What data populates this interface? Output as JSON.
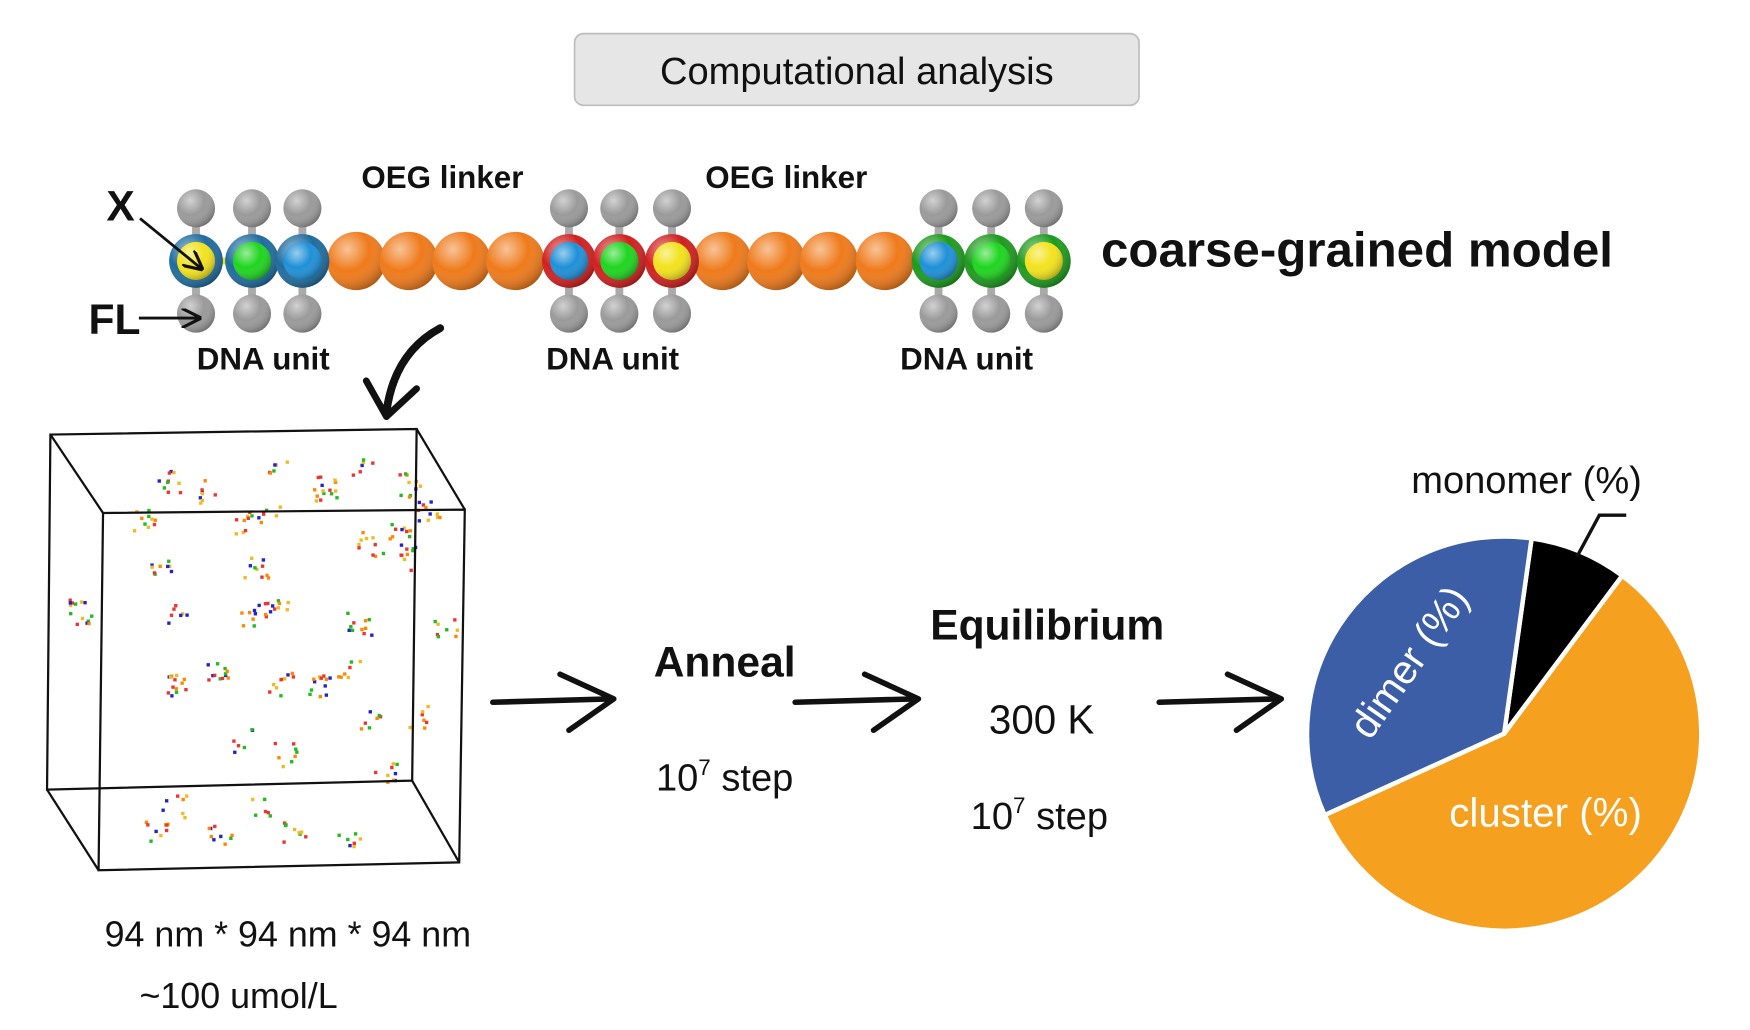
{
  "header": {
    "title": "Computational analysis"
  },
  "model": {
    "title": "coarse-grained model",
    "x_label": "X",
    "fl_label": "FL",
    "linker_labels": [
      "OEG linker",
      "OEG linker"
    ],
    "unit_labels": [
      "DNA unit",
      "DNA unit",
      "DNA unit"
    ],
    "colors": {
      "linker": "#ef7a1a",
      "flank": "#9a9a9a",
      "unit_rings": [
        "#1f6c9e",
        "#d11f1f",
        "#1e9a1e"
      ],
      "unit_cores": [
        [
          "#f2e21c",
          "#1fd51f",
          "#1e90d8"
        ],
        [
          "#1e90d8",
          "#1fd51f",
          "#f2e21c"
        ],
        [
          "#1e90d8",
          "#1fd51f",
          "#f2e21c"
        ]
      ]
    }
  },
  "box": {
    "dimensions": "94 nm * 94 nm * 94 nm",
    "concentration": "~100 umol/L"
  },
  "steps": {
    "anneal": {
      "title": "Anneal",
      "base": "10",
      "exp": "7",
      "unit": " step"
    },
    "equilibrium": {
      "title": "Equilibrium",
      "temperature": "300 K",
      "base": "10",
      "exp": "7",
      "unit": " step"
    }
  },
  "pie": {
    "slices": [
      {
        "label": "monomer (%)",
        "value": 8,
        "color": "#000000"
      },
      {
        "label": "cluster (%)",
        "value": 58,
        "color": "#f5a01e"
      },
      {
        "label": "dimer (%)",
        "value": 34,
        "color": "#3b5ea6"
      }
    ],
    "start_angle_deg": 8
  }
}
